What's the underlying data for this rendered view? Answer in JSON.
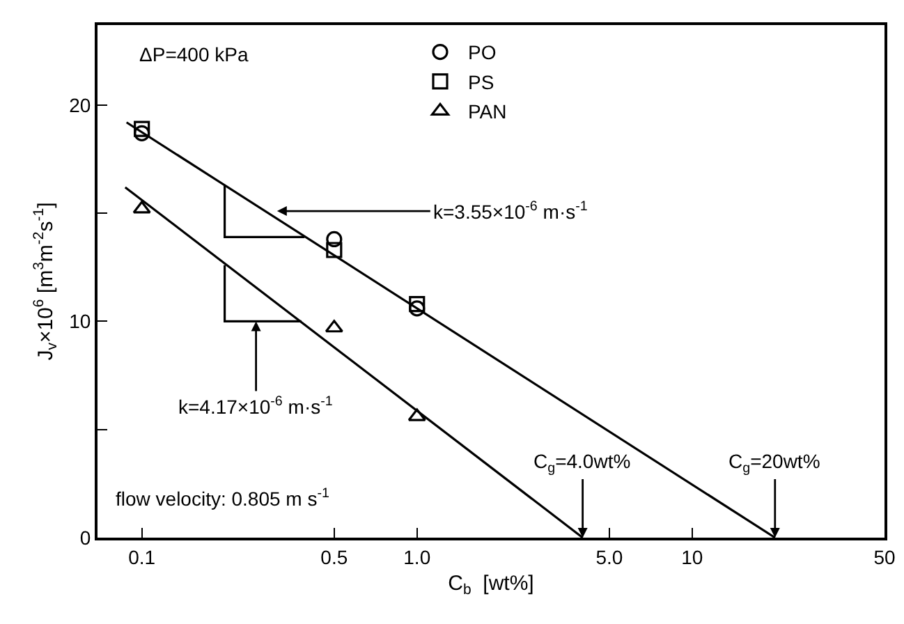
{
  "chart_data": {
    "type": "scatter",
    "xlabel": "C$_{b}$  [wt%]",
    "ylabel": "J$_{v}$×10$^{6}$ [m$^{3}$m$^{-2}$s$^{-1}$]",
    "log": "x",
    "xlim": [
      0.069,
      50
    ],
    "ylim": [
      0,
      23.7
    ],
    "xticks": [
      0.1,
      0.5,
      {
        "value": 1,
        "label": "1.0"
      },
      {
        "value": 5,
        "label": "5.0"
      },
      10,
      50
    ],
    "yticks": [
      0,
      {
        "value": 5,
        "label": null
      },
      10,
      {
        "value": 15,
        "label": null
      },
      20
    ],
    "grid": false,
    "legend": "top",
    "line_style": "solid",
    "series": [
      {
        "name": "PO",
        "color": "#000000",
        "marker": "circle",
        "x": [
          0.1,
          0.5,
          1.0
        ],
        "values": [
          18.7,
          13.8,
          10.6
        ]
      },
      {
        "name": "PS",
        "color": "#000000",
        "marker": "square",
        "x": [
          0.1,
          0.5,
          1.0
        ],
        "values": [
          18.9,
          13.3,
          10.8
        ]
      },
      {
        "name": "PAN",
        "color": "#000000",
        "marker": "triangle",
        "x": [
          0.1,
          0.5,
          1.0
        ],
        "values": [
          15.2,
          9.7,
          5.6
        ]
      },
      {
        "type": "line",
        "color": "#000000",
        "marker": "none",
        "x": [
          0.088,
          20
        ],
        "values": [
          19.2,
          0
        ]
      },
      {
        "type": "line",
        "color": "#000000",
        "marker": "none",
        "x": [
          0.087,
          4.0
        ],
        "values": [
          16.2,
          0
        ]
      },
      {
        "type": "line",
        "color": "#000000",
        "marker": "none",
        "x": [
          0.2,
          0.2,
          0.39
        ],
        "values": [
          16.3,
          13.9,
          13.9
        ]
      },
      {
        "type": "line",
        "color": "#000000",
        "marker": "none",
        "x": [
          0.2,
          0.2,
          0.38
        ],
        "values": [
          12.6,
          10.0,
          10.0
        ]
      }
    ],
    "annotations": [
      "ΔP=400 kPa",
      {
        "text": "k=3.55×10$^{-6}$ m·s$^{-1}$",
        "x": 0.31,
        "y": 15.1
      },
      {
        "text": "k=4.17×10$^{-6}$ m·s$^{-1}$",
        "x": 0.26,
        "y": 10.0
      },
      {
        "text": "C$_{g}$=4.0wt%",
        "x": 4.0,
        "y": 0
      },
      {
        "text": "C$_{g}$=20wt%",
        "x": 20,
        "y": 0
      },
      "flow velocity: 0.805 m s$^{-1}$"
    ]
  }
}
